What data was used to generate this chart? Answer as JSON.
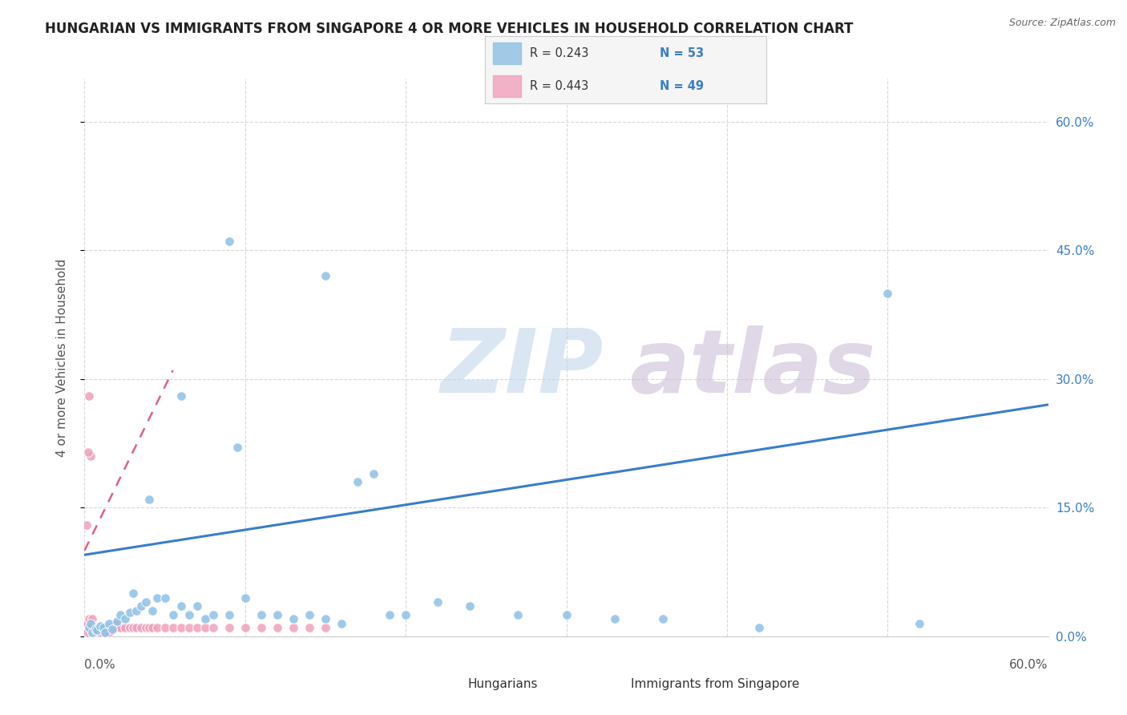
{
  "title": "HUNGARIAN VS IMMIGRANTS FROM SINGAPORE 4 OR MORE VEHICLES IN HOUSEHOLD CORRELATION CHART",
  "source": "Source: ZipAtlas.com",
  "ylabel": "4 or more Vehicles in Household",
  "watermark_zip": "ZIP",
  "watermark_atlas": "atlas",
  "legend": [
    {
      "r": "0.243",
      "n": "53",
      "color": "#aac4e8"
    },
    {
      "r": "0.443",
      "n": "49",
      "color": "#f5b0c5"
    }
  ],
  "blue_scatter": [
    [
      0.3,
      1.0
    ],
    [
      0.4,
      1.5
    ],
    [
      0.5,
      0.5
    ],
    [
      0.7,
      0.8
    ],
    [
      0.8,
      0.7
    ],
    [
      1.0,
      1.2
    ],
    [
      1.2,
      1.0
    ],
    [
      1.3,
      0.5
    ],
    [
      1.5,
      1.5
    ],
    [
      1.7,
      0.8
    ],
    [
      2.0,
      1.8
    ],
    [
      2.2,
      2.5
    ],
    [
      2.5,
      2.0
    ],
    [
      2.8,
      2.8
    ],
    [
      3.0,
      5.0
    ],
    [
      3.2,
      3.0
    ],
    [
      3.5,
      3.5
    ],
    [
      3.8,
      4.0
    ],
    [
      4.0,
      16.0
    ],
    [
      4.2,
      3.0
    ],
    [
      4.5,
      4.5
    ],
    [
      5.0,
      4.5
    ],
    [
      5.5,
      2.5
    ],
    [
      6.0,
      3.5
    ],
    [
      6.5,
      2.5
    ],
    [
      7.0,
      3.5
    ],
    [
      7.5,
      2.0
    ],
    [
      8.0,
      2.5
    ],
    [
      9.0,
      2.5
    ],
    [
      9.5,
      22.0
    ],
    [
      10.0,
      4.5
    ],
    [
      11.0,
      2.5
    ],
    [
      12.0,
      2.5
    ],
    [
      13.0,
      2.0
    ],
    [
      14.0,
      2.5
    ],
    [
      15.0,
      2.0
    ],
    [
      16.0,
      1.5
    ],
    [
      17.0,
      18.0
    ],
    [
      18.0,
      19.0
    ],
    [
      19.0,
      2.5
    ],
    [
      20.0,
      2.5
    ],
    [
      22.0,
      4.0
    ],
    [
      24.0,
      3.5
    ],
    [
      27.0,
      2.5
    ],
    [
      30.0,
      2.5
    ],
    [
      33.0,
      2.0
    ],
    [
      36.0,
      2.0
    ],
    [
      42.0,
      1.0
    ],
    [
      50.0,
      40.0
    ],
    [
      52.0,
      1.5
    ],
    [
      6.0,
      28.0
    ],
    [
      9.0,
      46.0
    ],
    [
      15.0,
      42.0
    ]
  ],
  "pink_scatter": [
    [
      0.1,
      1.0
    ],
    [
      0.2,
      1.5
    ],
    [
      0.2,
      0.5
    ],
    [
      0.3,
      2.0
    ],
    [
      0.3,
      28.0
    ],
    [
      0.4,
      21.0
    ],
    [
      0.4,
      0.8
    ],
    [
      0.5,
      1.0
    ],
    [
      0.5,
      2.0
    ],
    [
      0.6,
      1.2
    ],
    [
      0.7,
      1.0
    ],
    [
      0.8,
      1.0
    ],
    [
      0.9,
      1.0
    ],
    [
      1.0,
      0.5
    ],
    [
      1.0,
      1.0
    ],
    [
      1.2,
      1.0
    ],
    [
      1.3,
      0.5
    ],
    [
      1.5,
      0.5
    ],
    [
      1.5,
      1.0
    ],
    [
      1.6,
      1.0
    ],
    [
      1.8,
      1.0
    ],
    [
      2.0,
      1.0
    ],
    [
      2.0,
      1.5
    ],
    [
      2.2,
      1.0
    ],
    [
      2.5,
      1.0
    ],
    [
      2.8,
      1.0
    ],
    [
      3.0,
      1.0
    ],
    [
      3.2,
      1.0
    ],
    [
      3.5,
      1.0
    ],
    [
      3.8,
      1.0
    ],
    [
      4.0,
      1.0
    ],
    [
      4.2,
      1.0
    ],
    [
      4.5,
      1.0
    ],
    [
      5.0,
      1.0
    ],
    [
      5.5,
      1.0
    ],
    [
      6.0,
      1.0
    ],
    [
      6.5,
      1.0
    ],
    [
      7.0,
      1.0
    ],
    [
      7.5,
      1.0
    ],
    [
      8.0,
      1.0
    ],
    [
      9.0,
      1.0
    ],
    [
      10.0,
      1.0
    ],
    [
      11.0,
      1.0
    ],
    [
      12.0,
      1.0
    ],
    [
      13.0,
      1.0
    ],
    [
      14.0,
      1.0
    ],
    [
      15.0,
      1.0
    ],
    [
      0.15,
      13.0
    ],
    [
      0.25,
      21.5
    ]
  ],
  "blue_line": {
    "x": [
      0.0,
      60.0
    ],
    "y": [
      9.5,
      27.0
    ]
  },
  "pink_line": {
    "x": [
      0.0,
      5.5
    ],
    "y": [
      10.0,
      31.0
    ]
  },
  "xlim": [
    0.0,
    60.0
  ],
  "ylim": [
    0.0,
    65.0
  ],
  "yticks": [
    0.0,
    15.0,
    30.0,
    45.0,
    60.0
  ],
  "ytick_labels": [
    "0.0%",
    "15.0%",
    "30.0%",
    "45.0%",
    "60.0%"
  ],
  "xtick_labels": [
    "0.0%",
    "60.0%"
  ],
  "title_color": "#222222",
  "blue_color": "#8ec0e4",
  "pink_color": "#f0a0bc",
  "blue_line_color": "#3a7dc9",
  "pink_line_color": "#e06080",
  "tick_color": "#3a7dc9",
  "source_color": "#666666",
  "background_color": "#ffffff",
  "plot_bg_color": "#ffffff",
  "grid_color": "#d8d8d8",
  "grid_style": "--"
}
